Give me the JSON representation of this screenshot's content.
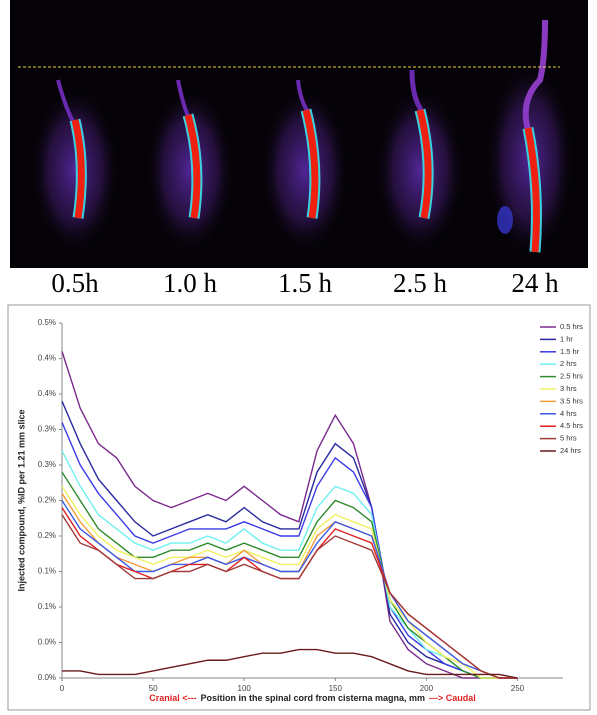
{
  "image_labels": [
    "0.5h",
    "1.0 h",
    "1.5 h",
    "2.5 h",
    "24 h"
  ],
  "chart_data": {
    "type": "line",
    "y_label": "Injected compound, %ID per 1.21 mm slice",
    "x_label_left": "Cranial <---",
    "x_label": "Position in the spinal cord from cisterna magna, mm",
    "x_label_right": "---> Caudal",
    "x": [
      0,
      10,
      20,
      30,
      40,
      50,
      60,
      70,
      80,
      90,
      100,
      110,
      120,
      130,
      140,
      150,
      160,
      170,
      180,
      190,
      200,
      210,
      220,
      230,
      240,
      250
    ],
    "xlim": [
      0,
      275
    ],
    "xticks": [
      0,
      50,
      100,
      150,
      200,
      250
    ],
    "ylim": [
      0,
      0.5
    ],
    "yticks": [
      {
        "value": 0,
        "label": "0.0%"
      },
      {
        "value": 0.05,
        "label": "0.0%"
      },
      {
        "value": 0.1,
        "label": "0.1%"
      },
      {
        "value": 0.15,
        "label": "0.1%"
      },
      {
        "value": 0.2,
        "label": "0.2%"
      },
      {
        "value": 0.25,
        "label": "0.2%"
      },
      {
        "value": 0.3,
        "label": "0.3%"
      },
      {
        "value": 0.35,
        "label": "0.3%"
      },
      {
        "value": 0.4,
        "label": "0.4%"
      },
      {
        "value": 0.45,
        "label": "0.4%"
      },
      {
        "value": 0.5,
        "label": "0.5%"
      }
    ],
    "grid": false,
    "legend": "top-right",
    "series": [
      {
        "name": "0.5 hrs",
        "color": "#7b2a8e",
        "values": [
          0.46,
          0.38,
          0.33,
          0.31,
          0.27,
          0.25,
          0.24,
          0.25,
          0.26,
          0.25,
          0.27,
          0.25,
          0.23,
          0.22,
          0.32,
          0.37,
          0.33,
          0.24,
          0.08,
          0.04,
          0.02,
          0.01,
          0,
          0,
          0,
          0
        ]
      },
      {
        "name": "1 hr",
        "color": "#2a2aa0",
        "values": [
          0.39,
          0.33,
          0.28,
          0.25,
          0.22,
          0.2,
          0.21,
          0.22,
          0.23,
          0.22,
          0.24,
          0.22,
          0.21,
          0.21,
          0.29,
          0.33,
          0.31,
          0.24,
          0.09,
          0.05,
          0.03,
          0.02,
          0.01,
          0,
          0,
          0
        ]
      },
      {
        "name": "1.5 hr",
        "color": "#3b3be8",
        "values": [
          0.36,
          0.3,
          0.26,
          0.23,
          0.2,
          0.19,
          0.2,
          0.21,
          0.21,
          0.21,
          0.22,
          0.21,
          0.2,
          0.2,
          0.27,
          0.31,
          0.29,
          0.24,
          0.1,
          0.06,
          0.04,
          0.02,
          0.01,
          0,
          0,
          0
        ]
      },
      {
        "name": "2 hrs",
        "color": "#6ff0f0",
        "values": [
          0.32,
          0.27,
          0.23,
          0.21,
          0.19,
          0.18,
          0.19,
          0.19,
          0.2,
          0.19,
          0.21,
          0.19,
          0.18,
          0.18,
          0.24,
          0.27,
          0.26,
          0.23,
          0.1,
          0.07,
          0.04,
          0.03,
          0.01,
          0,
          0,
          0
        ]
      },
      {
        "name": "2.5 hrs",
        "color": "#2e8b2e",
        "values": [
          0.29,
          0.25,
          0.21,
          0.19,
          0.17,
          0.17,
          0.18,
          0.18,
          0.19,
          0.18,
          0.19,
          0.18,
          0.17,
          0.17,
          0.22,
          0.25,
          0.24,
          0.22,
          0.11,
          0.07,
          0.05,
          0.03,
          0.01,
          0,
          0,
          0
        ]
      },
      {
        "name": "3 hrs",
        "color": "#f0f060",
        "values": [
          0.27,
          0.23,
          0.2,
          0.18,
          0.17,
          0.16,
          0.17,
          0.17,
          0.18,
          0.17,
          0.18,
          0.17,
          0.16,
          0.16,
          0.21,
          0.23,
          0.22,
          0.21,
          0.11,
          0.08,
          0.05,
          0.03,
          0.02,
          0,
          0,
          0
        ]
      },
      {
        "name": "3.5 hrs",
        "color": "#f39c3c",
        "values": [
          0.26,
          0.22,
          0.19,
          0.17,
          0.16,
          0.15,
          0.16,
          0.17,
          0.17,
          0.16,
          0.18,
          0.16,
          0.15,
          0.15,
          0.2,
          0.22,
          0.21,
          0.2,
          0.12,
          0.08,
          0.06,
          0.04,
          0.02,
          0.01,
          0,
          0
        ]
      },
      {
        "name": "4 hrs",
        "color": "#3a5ae8",
        "values": [
          0.25,
          0.21,
          0.19,
          0.17,
          0.15,
          0.15,
          0.16,
          0.16,
          0.17,
          0.16,
          0.17,
          0.16,
          0.15,
          0.15,
          0.19,
          0.22,
          0.21,
          0.2,
          0.12,
          0.08,
          0.06,
          0.04,
          0.02,
          0.01,
          0,
          0
        ]
      },
      {
        "name": "4.5 hrs",
        "color": "#e02020",
        "values": [
          0.24,
          0.2,
          0.18,
          0.16,
          0.15,
          0.14,
          0.15,
          0.16,
          0.16,
          0.15,
          0.17,
          0.15,
          0.14,
          0.14,
          0.18,
          0.21,
          0.2,
          0.19,
          0.12,
          0.09,
          0.07,
          0.05,
          0.03,
          0.01,
          0,
          0
        ]
      },
      {
        "name": "5 hrs",
        "color": "#a03a3a",
        "values": [
          0.23,
          0.19,
          0.18,
          0.16,
          0.14,
          0.14,
          0.15,
          0.15,
          0.16,
          0.15,
          0.16,
          0.15,
          0.14,
          0.14,
          0.18,
          0.2,
          0.19,
          0.18,
          0.12,
          0.09,
          0.07,
          0.05,
          0.03,
          0.01,
          0,
          0
        ]
      },
      {
        "name": "24 hrs",
        "color": "#6b1a1a",
        "values": [
          0.01,
          0.01,
          0.005,
          0.005,
          0.005,
          0.01,
          0.015,
          0.02,
          0.025,
          0.025,
          0.03,
          0.035,
          0.035,
          0.04,
          0.04,
          0.035,
          0.035,
          0.03,
          0.02,
          0.01,
          0.005,
          0.005,
          0.005,
          0.005,
          0.005,
          0
        ]
      }
    ]
  }
}
